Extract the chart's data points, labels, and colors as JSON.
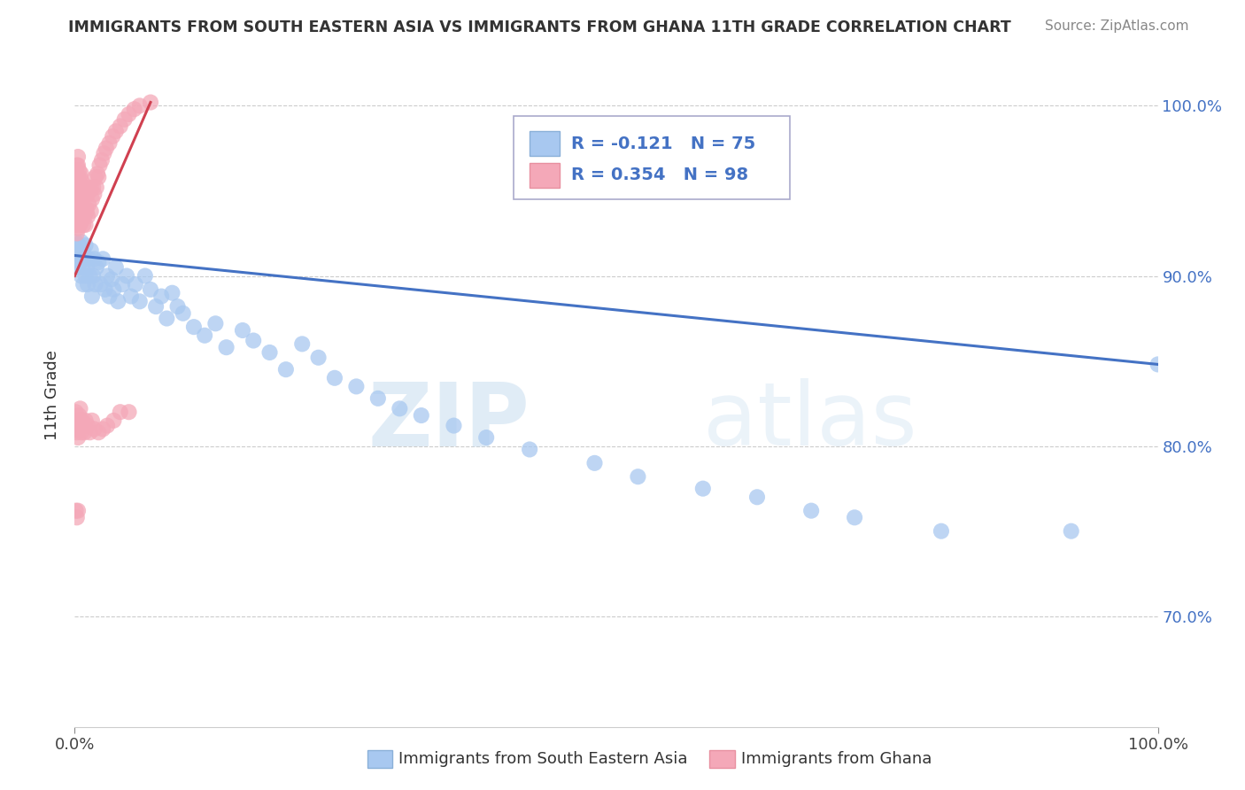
{
  "title": "IMMIGRANTS FROM SOUTH EASTERN ASIA VS IMMIGRANTS FROM GHANA 11TH GRADE CORRELATION CHART",
  "source": "Source: ZipAtlas.com",
  "ylabel": "11th Grade",
  "blue_color": "#a8c8f0",
  "pink_color": "#f4a8b8",
  "trend_blue": "#4472c4",
  "trend_pink": "#d04050",
  "legend_text_color": "#4472c4",
  "grid_color": "#cccccc",
  "watermark_zip": "ZIP",
  "watermark_atlas": "atlas",
  "figsize": [
    14.06,
    8.92
  ],
  "dpi": 100,
  "xlim": [
    0.0,
    1.0
  ],
  "ylim": [
    0.635,
    1.025
  ],
  "yticks": [
    0.7,
    0.8,
    0.9,
    1.0
  ],
  "ytick_labels": [
    "70.0%",
    "80.0%",
    "90.0%",
    "100.0%"
  ],
  "blue_x": [
    0.001,
    0.002,
    0.003,
    0.003,
    0.004,
    0.005,
    0.005,
    0.006,
    0.006,
    0.007,
    0.008,
    0.008,
    0.009,
    0.01,
    0.01,
    0.011,
    0.012,
    0.013,
    0.014,
    0.015,
    0.016,
    0.017,
    0.018,
    0.019,
    0.02,
    0.022,
    0.024,
    0.026,
    0.028,
    0.03,
    0.032,
    0.034,
    0.036,
    0.038,
    0.04,
    0.044,
    0.048,
    0.052,
    0.056,
    0.06,
    0.065,
    0.07,
    0.075,
    0.08,
    0.085,
    0.09,
    0.095,
    0.1,
    0.11,
    0.12,
    0.13,
    0.14,
    0.155,
    0.165,
    0.18,
    0.195,
    0.21,
    0.225,
    0.24,
    0.26,
    0.28,
    0.3,
    0.32,
    0.35,
    0.38,
    0.42,
    0.48,
    0.52,
    0.58,
    0.63,
    0.68,
    0.72,
    0.8,
    0.92,
    1.0
  ],
  "blue_y": [
    0.92,
    0.915,
    0.91,
    0.905,
    0.918,
    0.908,
    0.912,
    0.9,
    0.92,
    0.905,
    0.915,
    0.895,
    0.91,
    0.9,
    0.918,
    0.905,
    0.895,
    0.91,
    0.9,
    0.915,
    0.888,
    0.9,
    0.91,
    0.895,
    0.905,
    0.908,
    0.895,
    0.91,
    0.892,
    0.9,
    0.888,
    0.898,
    0.892,
    0.905,
    0.885,
    0.895,
    0.9,
    0.888,
    0.895,
    0.885,
    0.9,
    0.892,
    0.882,
    0.888,
    0.875,
    0.89,
    0.882,
    0.878,
    0.87,
    0.865,
    0.872,
    0.858,
    0.868,
    0.862,
    0.855,
    0.845,
    0.86,
    0.852,
    0.84,
    0.835,
    0.828,
    0.822,
    0.818,
    0.812,
    0.805,
    0.798,
    0.79,
    0.782,
    0.775,
    0.77,
    0.762,
    0.758,
    0.75,
    0.75,
    0.848
  ],
  "pink_x": [
    0.001,
    0.001,
    0.001,
    0.001,
    0.001,
    0.002,
    0.002,
    0.002,
    0.002,
    0.002,
    0.002,
    0.003,
    0.003,
    0.003,
    0.003,
    0.003,
    0.003,
    0.003,
    0.004,
    0.004,
    0.004,
    0.004,
    0.004,
    0.005,
    0.005,
    0.005,
    0.005,
    0.006,
    0.006,
    0.006,
    0.006,
    0.007,
    0.007,
    0.007,
    0.008,
    0.008,
    0.008,
    0.009,
    0.009,
    0.01,
    0.01,
    0.01,
    0.011,
    0.011,
    0.012,
    0.012,
    0.013,
    0.014,
    0.015,
    0.015,
    0.016,
    0.017,
    0.018,
    0.019,
    0.02,
    0.021,
    0.022,
    0.023,
    0.025,
    0.027,
    0.029,
    0.032,
    0.035,
    0.038,
    0.042,
    0.046,
    0.05,
    0.055,
    0.06,
    0.07,
    0.001,
    0.002,
    0.002,
    0.003,
    0.003,
    0.004,
    0.004,
    0.005,
    0.005,
    0.006,
    0.006,
    0.007,
    0.008,
    0.009,
    0.01,
    0.012,
    0.014,
    0.016,
    0.018,
    0.022,
    0.026,
    0.03,
    0.036,
    0.042,
    0.05,
    0.001,
    0.002,
    0.003
  ],
  "pink_y": [
    0.93,
    0.94,
    0.948,
    0.955,
    0.962,
    0.925,
    0.935,
    0.945,
    0.952,
    0.958,
    0.965,
    0.928,
    0.938,
    0.945,
    0.952,
    0.958,
    0.965,
    0.97,
    0.932,
    0.94,
    0.948,
    0.955,
    0.962,
    0.93,
    0.938,
    0.948,
    0.958,
    0.932,
    0.94,
    0.95,
    0.96,
    0.935,
    0.945,
    0.955,
    0.93,
    0.94,
    0.952,
    0.935,
    0.948,
    0.93,
    0.94,
    0.952,
    0.938,
    0.948,
    0.935,
    0.948,
    0.942,
    0.95,
    0.938,
    0.952,
    0.945,
    0.952,
    0.948,
    0.958,
    0.952,
    0.96,
    0.958,
    0.965,
    0.968,
    0.972,
    0.975,
    0.978,
    0.982,
    0.985,
    0.988,
    0.992,
    0.995,
    0.998,
    1.0,
    1.002,
    0.82,
    0.812,
    0.808,
    0.815,
    0.805,
    0.818,
    0.81,
    0.822,
    0.815,
    0.812,
    0.808,
    0.815,
    0.812,
    0.808,
    0.815,
    0.812,
    0.808,
    0.815,
    0.81,
    0.808,
    0.81,
    0.812,
    0.815,
    0.82,
    0.82,
    0.762,
    0.758,
    0.762
  ]
}
